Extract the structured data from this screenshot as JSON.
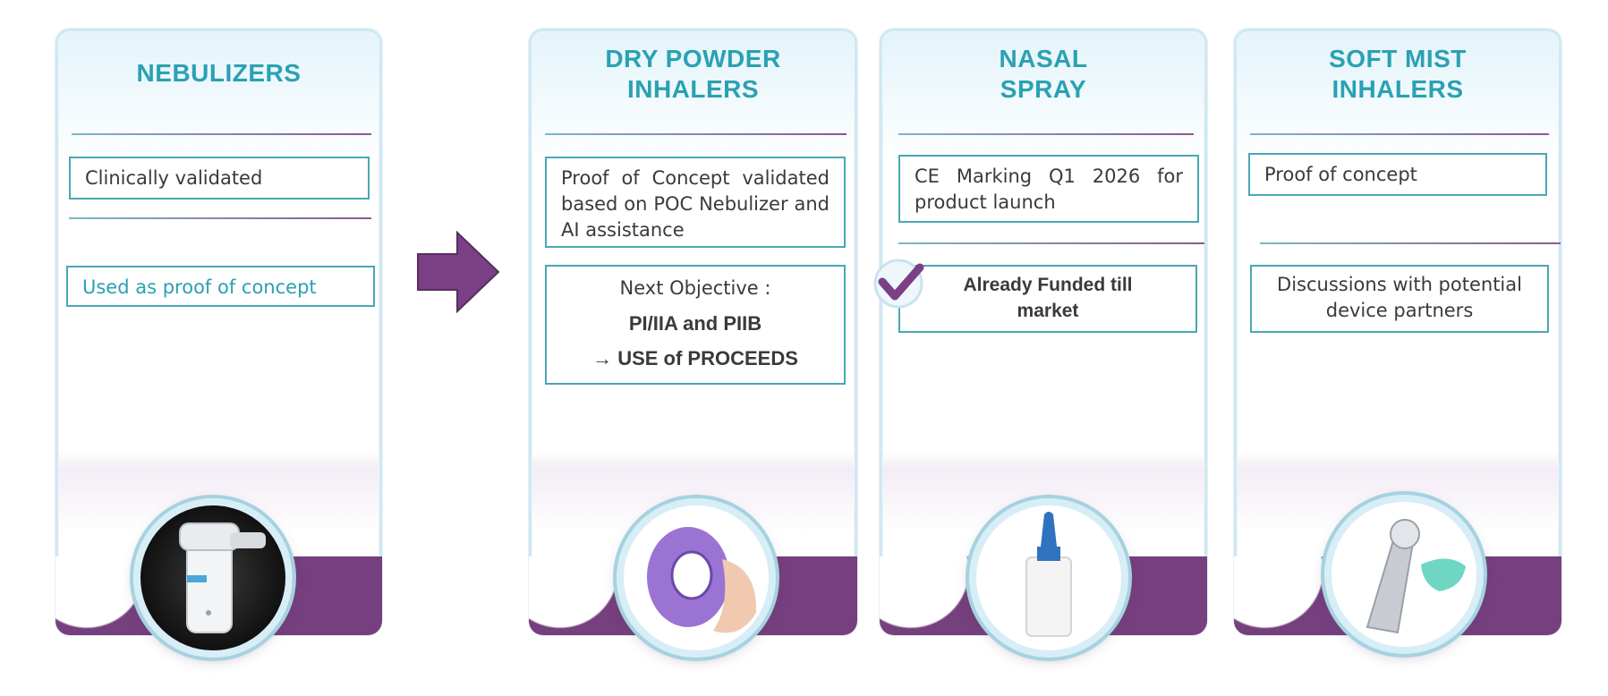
{
  "cards": [
    {
      "title": "NEBULIZERS",
      "boxes": [
        "Clinically validated",
        "Used as proof of concept"
      ],
      "image_icon": "nebulizer-device-icon"
    },
    {
      "title_line1": "DRY POWDER",
      "title_line2": "INHALERS",
      "status": "Proof of Concept validated based on POC Nebulizer and AI assistance",
      "objective_label": "Next Objective :",
      "objective_phase": "PI/IIA and PIIB",
      "objective_proceeds": "→ USE of PROCEEDS",
      "image_icon": "dry-powder-inhaler-icon"
    },
    {
      "title_line1": "NASAL",
      "title_line2": "SPRAY",
      "status": "CE Marking Q1 2026 for product launch",
      "funding_line1": "Already Funded till",
      "funding_line2": "market",
      "image_icon": "nasal-spray-bottle-icon"
    },
    {
      "title_line1": "SOFT MIST",
      "title_line2": "INHALERS",
      "status": "Proof of concept",
      "partners_line1": "Discussions with potential",
      "partners_line2": "device partners",
      "image_icon": "soft-mist-inhaler-icon"
    }
  ],
  "colors": {
    "title_teal": "#2aa1b3",
    "box_border": "#4aa7b5",
    "purple": "#763f7e",
    "card_border": "#cfe9f2"
  },
  "arrow_icon": "right-arrow-icon",
  "check_icon": "checkmark-icon"
}
